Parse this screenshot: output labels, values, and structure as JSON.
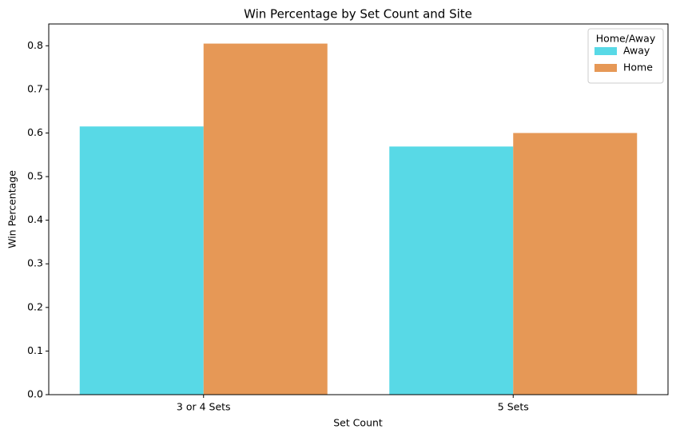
{
  "chart_data": {
    "type": "grouped_bar",
    "title": "Win Percentage by Set Count and Site",
    "x_label": "Set Count",
    "y_label": "Win Percentage",
    "categories": [
      "3 or 4 Sets",
      "5 Sets"
    ],
    "series": [
      {
        "name": "Away",
        "color": "#58d9e6",
        "values": [
          0.615,
          0.569
        ]
      },
      {
        "name": "Home",
        "color": "#e69856",
        "values": [
          0.805,
          0.6
        ]
      }
    ],
    "legend_title": "Home/Away",
    "legend_position": "upper right",
    "ylim": [
      0,
      0.85
    ],
    "yticks": [
      {
        "value": 0,
        "label": "0.0"
      },
      {
        "value": 0.1,
        "label": "0.1"
      },
      {
        "value": 0.2,
        "label": "0.2"
      },
      {
        "value": 0.3,
        "label": "0.3"
      },
      {
        "value": 0.4,
        "label": "0.4"
      },
      {
        "value": 0.5,
        "label": "0.5"
      },
      {
        "value": 0.6,
        "label": "0.6"
      },
      {
        "value": 0.7,
        "label": "0.7"
      },
      {
        "value": 0.8,
        "label": "0.8"
      }
    ]
  }
}
